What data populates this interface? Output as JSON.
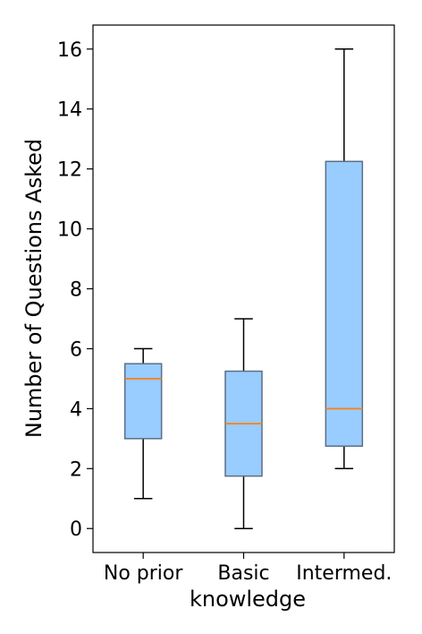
{
  "chart_data": {
    "type": "box",
    "title": "",
    "xlabel": "knowledge",
    "ylabel": "Number of Questions Asked",
    "categories": [
      "No prior",
      "Basic",
      "Intermed."
    ],
    "boxes": [
      {
        "category": "No prior",
        "whisker_low": 1,
        "q1": 3,
        "median": 5,
        "q3": 5.5,
        "whisker_high": 6
      },
      {
        "category": "Basic",
        "whisker_low": 0,
        "q1": 1.75,
        "median": 3.5,
        "q3": 5.25,
        "whisker_high": 7
      },
      {
        "category": "Intermed.",
        "whisker_low": 2,
        "q1": 2.75,
        "median": 4,
        "q3": 12.25,
        "whisker_high": 16
      }
    ],
    "ylim": [
      -0.8,
      16.8
    ],
    "yticks": [
      0,
      2,
      4,
      6,
      8,
      10,
      12,
      14,
      16
    ],
    "grid": false,
    "colors": {
      "box_fill": "#99ccff",
      "box_edge": "#5a6f86",
      "median": "#ff7f0e",
      "whisker": "#000000"
    }
  }
}
